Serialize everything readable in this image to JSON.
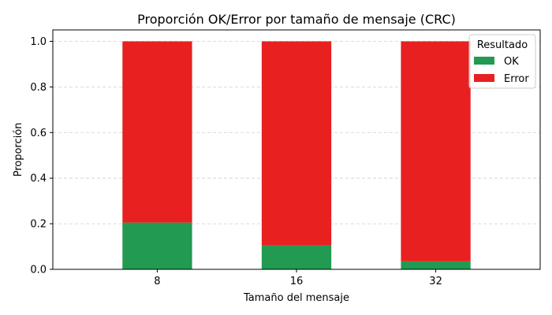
{
  "chart_data": {
    "type": "bar",
    "stacked": true,
    "title": "Proporción OK/Error por tamaño de mensaje (CRC)",
    "xlabel": "Tamaño del mensaje",
    "ylabel": "Proporción",
    "categories": [
      "8",
      "16",
      "32"
    ],
    "series": [
      {
        "name": "OK",
        "color": "#229a52",
        "values": [
          0.205,
          0.105,
          0.035
        ]
      },
      {
        "name": "Error",
        "color": "#e82020",
        "values": [
          0.795,
          0.895,
          0.965
        ]
      }
    ],
    "ylim": [
      0,
      1.05
    ],
    "yticks": [
      "0.0",
      "0.2",
      "0.4",
      "0.6",
      "0.8",
      "1.0"
    ],
    "grid": "y-dashed",
    "legend": {
      "title": "Resultado",
      "position": "top-right"
    }
  }
}
